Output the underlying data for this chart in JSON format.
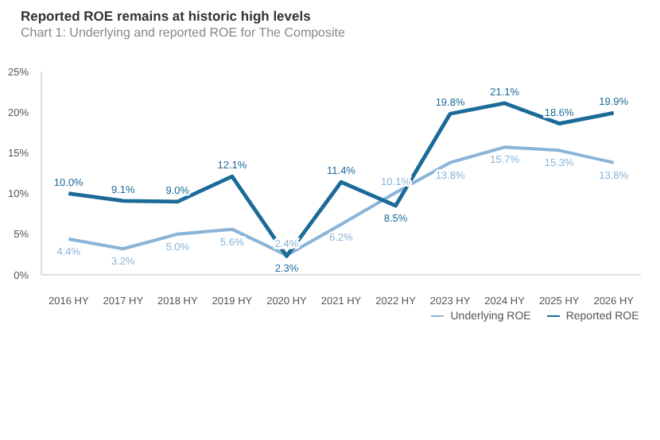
{
  "chart_data": {
    "type": "line",
    "title": "Reported ROE remains at historic high levels",
    "subtitle": "Chart 1: Underlying and reported ROE for The Composite",
    "categories": [
      "2016 HY",
      "2017 HY",
      "2018 HY",
      "2019 HY",
      "2020 HY",
      "2021 HY",
      "2022 HY",
      "2023 HY",
      "2024 HY",
      "2025 HY",
      "2026 HY"
    ],
    "series": [
      {
        "name": "Underlying ROE",
        "color": "#8ab4d8",
        "values": [
          4.4,
          3.2,
          5.0,
          5.6,
          2.4,
          6.2,
          10.1,
          13.8,
          15.7,
          15.3,
          13.8
        ],
        "value_labels": [
          "4.4%",
          "3.2%",
          "5.0%",
          "5.6%",
          "2.4%",
          "6.2%",
          "10.1%",
          "13.8%",
          "15.7%",
          "15.3%",
          "13.8%"
        ]
      },
      {
        "name": "Reported ROE",
        "color": "#1b6a97",
        "values": [
          10.0,
          9.1,
          9.0,
          12.1,
          2.3,
          11.4,
          8.5,
          19.8,
          21.1,
          18.6,
          19.9
        ],
        "value_labels": [
          "10.0%",
          "9.1%",
          "9.0%",
          "12.1%",
          "2.3%",
          "11.4%",
          "8.5%",
          "19.8%",
          "21.1%",
          "18.6%",
          "19.9%"
        ]
      }
    ],
    "ylim": [
      0,
      25
    ],
    "yticks": [
      {
        "value": 0,
        "label": "0%"
      },
      {
        "value": 5,
        "label": "5%"
      },
      {
        "value": 10,
        "label": "10%"
      },
      {
        "value": 15,
        "label": "15%"
      },
      {
        "value": 20,
        "label": "20%"
      },
      {
        "value": 25,
        "label": "25%"
      }
    ],
    "grid": false,
    "legend": "bottom",
    "marker": "none",
    "line_style": "solid"
  }
}
